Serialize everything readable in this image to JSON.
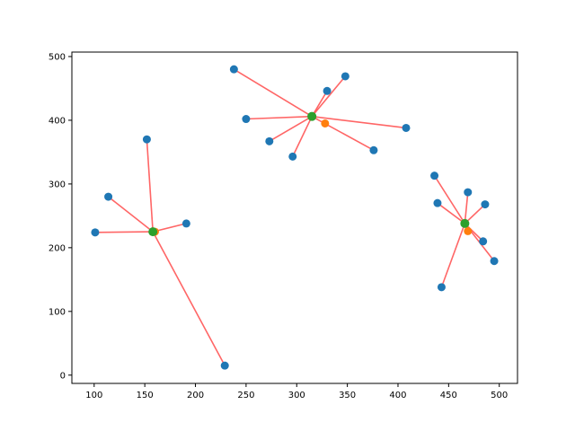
{
  "chart_data": {
    "type": "scatter",
    "title": "",
    "xlabel": "",
    "ylabel": "",
    "xlim": [
      78,
      518
    ],
    "ylim": [
      -13,
      507
    ],
    "grid": false,
    "legend": "none",
    "xticks": [
      100,
      150,
      200,
      250,
      300,
      350,
      400,
      450,
      500
    ],
    "yticks": [
      0,
      100,
      200,
      300,
      400,
      500
    ],
    "colors": {
      "points": "#1f77b4",
      "alt_center": "#ff7f0e",
      "center": "#2ca02c",
      "lines": "#ff5555"
    },
    "clusters": [
      {
        "center": [
          158,
          225
        ],
        "alt_center": [
          160,
          225
        ],
        "points": [
          [
            101,
            224
          ],
          [
            114,
            280
          ],
          [
            152,
            370
          ],
          [
            191,
            238
          ],
          [
            229,
            15
          ]
        ]
      },
      {
        "center": [
          315,
          406
        ],
        "alt_center": [
          328,
          395
        ],
        "points": [
          [
            238,
            480
          ],
          [
            250,
            402
          ],
          [
            273,
            367
          ],
          [
            296,
            343
          ],
          [
            330,
            446
          ],
          [
            348,
            469
          ],
          [
            376,
            353
          ],
          [
            408,
            388
          ]
        ]
      },
      {
        "center": [
          466,
          238
        ],
        "alt_center": [
          469,
          226
        ],
        "points": [
          [
            436,
            313
          ],
          [
            439,
            270
          ],
          [
            443,
            138
          ],
          [
            469,
            287
          ],
          [
            484,
            210
          ],
          [
            486,
            268
          ],
          [
            495,
            179
          ]
        ]
      }
    ]
  }
}
